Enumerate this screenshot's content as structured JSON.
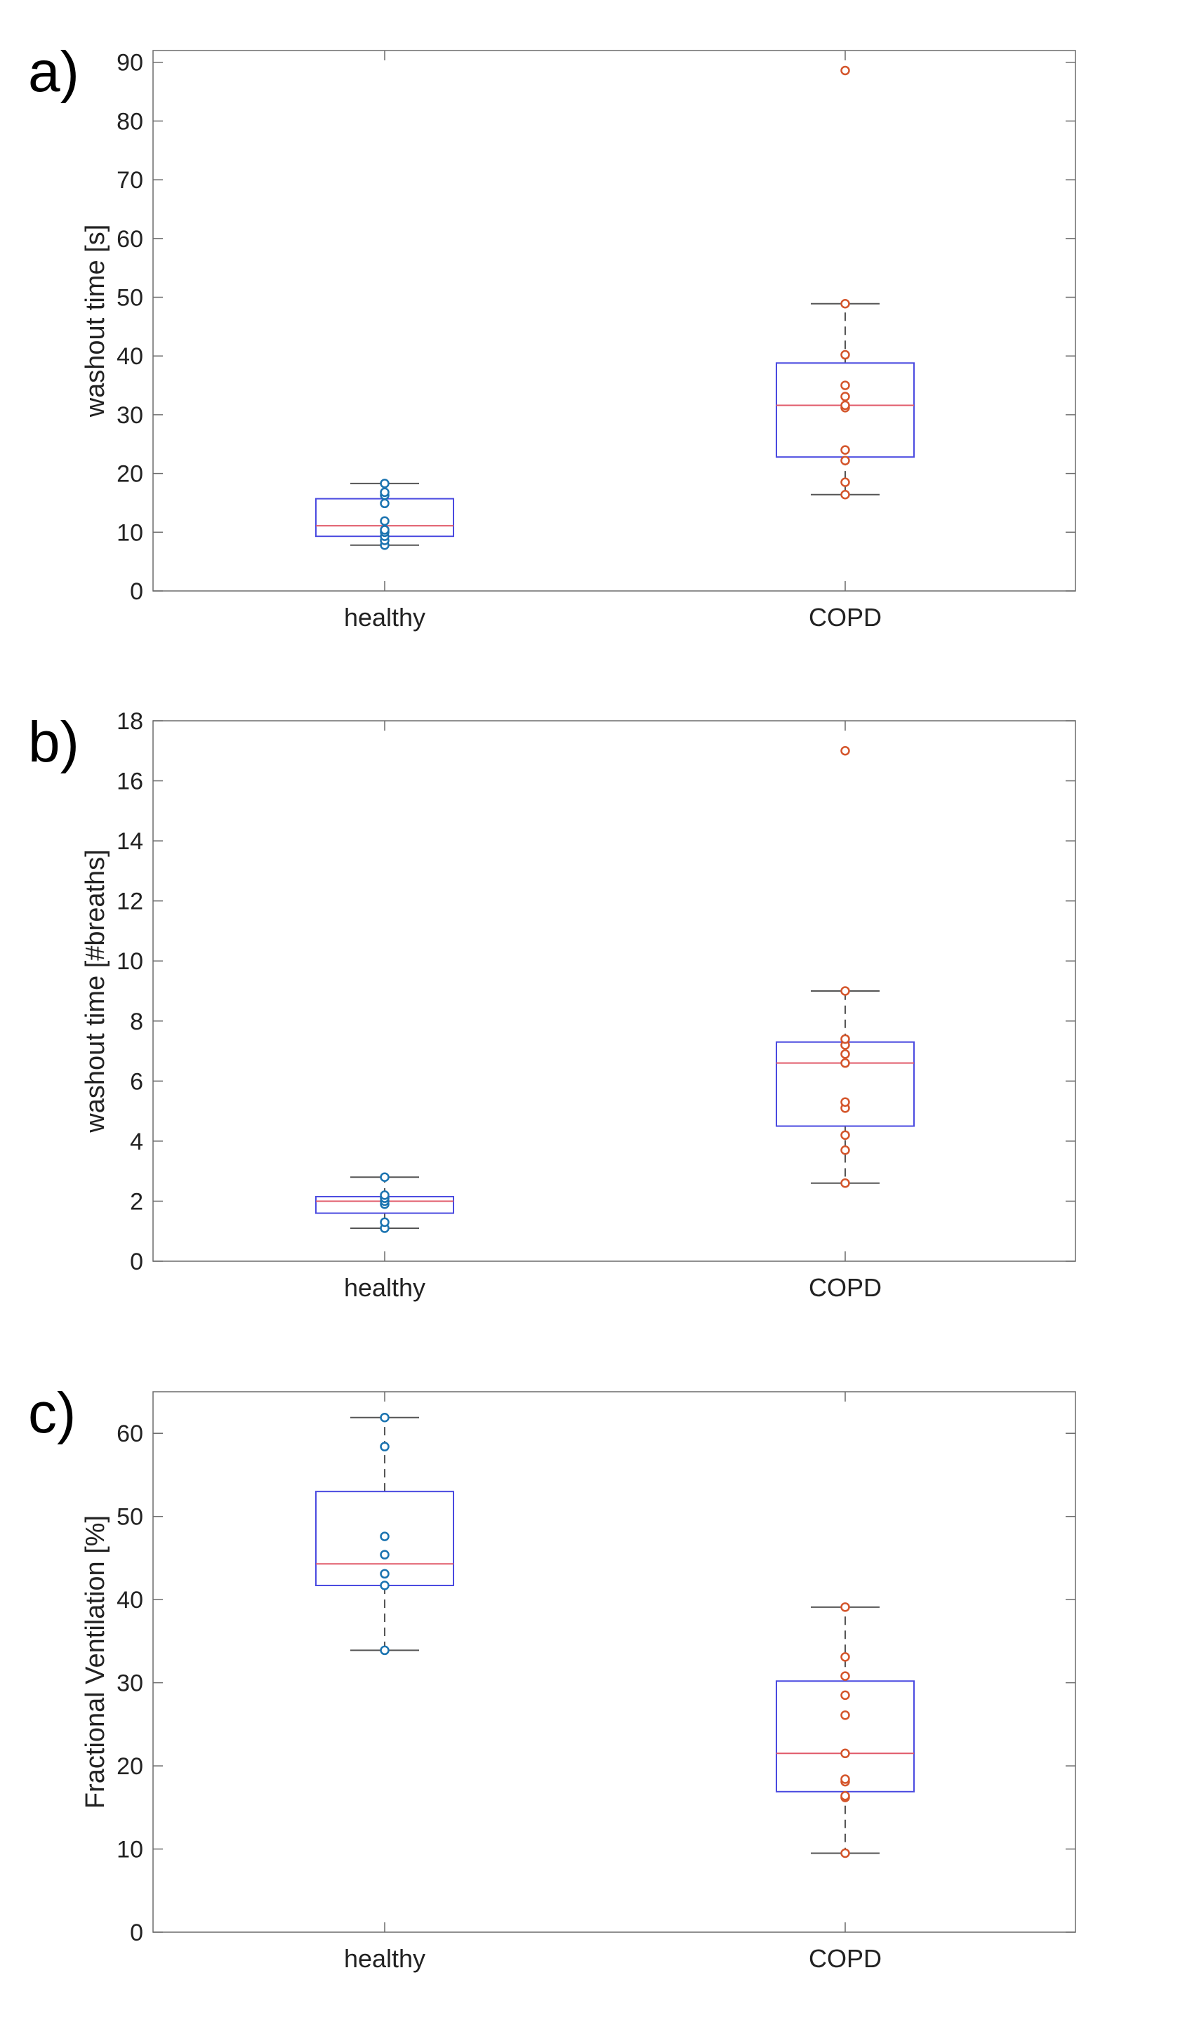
{
  "chart_data": [
    {
      "type": "box",
      "panel_label": "a)",
      "title": "",
      "xlabel": "",
      "ylabel": "washout time [s]",
      "ylim": [
        0,
        92
      ],
      "yticks": [
        0,
        10,
        20,
        30,
        40,
        50,
        60,
        70,
        80,
        90
      ],
      "categories": [
        "healthy",
        "COPD"
      ],
      "groups": [
        {
          "name": "healthy",
          "color": "#1a73b0",
          "whisker_low": 7.8,
          "q1": 9.3,
          "median": 11.1,
          "q3": 15.7,
          "whisker_high": 18.3,
          "points": [
            7.8,
            8.6,
            9.3,
            10.0,
            10.4,
            11.9,
            14.9,
            16.3,
            16.8,
            18.3
          ]
        },
        {
          "name": "COPD",
          "color": "#d4552b",
          "whisker_low": 16.4,
          "q1": 22.8,
          "median": 31.6,
          "q3": 38.8,
          "whisker_high": 48.9,
          "points": [
            16.4,
            18.5,
            22.2,
            24.0,
            31.2,
            31.6,
            33.1,
            35.0,
            40.2,
            48.9,
            88.6
          ]
        }
      ]
    },
    {
      "type": "box",
      "panel_label": "b)",
      "title": "",
      "xlabel": "",
      "ylabel": "washout time [#breaths]",
      "ylim": [
        0,
        18
      ],
      "yticks": [
        0,
        2,
        4,
        6,
        8,
        10,
        12,
        14,
        16,
        18
      ],
      "categories": [
        "healthy",
        "COPD"
      ],
      "groups": [
        {
          "name": "healthy",
          "color": "#1a73b0",
          "whisker_low": 1.1,
          "q1": 1.6,
          "median": 2.0,
          "q3": 2.15,
          "whisker_high": 2.8,
          "points": [
            1.1,
            1.3,
            1.9,
            2.0,
            2.1,
            2.2,
            2.8
          ]
        },
        {
          "name": "COPD",
          "color": "#d4552b",
          "whisker_low": 2.6,
          "q1": 4.5,
          "median": 6.6,
          "q3": 7.3,
          "whisker_high": 9.0,
          "points": [
            2.6,
            3.7,
            4.2,
            5.1,
            5.3,
            6.6,
            6.9,
            7.2,
            7.4,
            9.0,
            17.0
          ]
        }
      ]
    },
    {
      "type": "box",
      "panel_label": "c)",
      "title": "",
      "xlabel": "",
      "ylabel": "Fractional Ventilation [%]",
      "ylim": [
        0,
        65
      ],
      "yticks": [
        0,
        10,
        20,
        30,
        40,
        50,
        60
      ],
      "categories": [
        "healthy",
        "COPD"
      ],
      "groups": [
        {
          "name": "healthy",
          "color": "#1a73b0",
          "whisker_low": 33.9,
          "q1": 41.7,
          "median": 44.3,
          "q3": 53.0,
          "whisker_high": 61.9,
          "points": [
            33.9,
            41.7,
            43.1,
            45.4,
            47.6,
            58.4,
            61.9
          ]
        },
        {
          "name": "COPD",
          "color": "#d4552b",
          "whisker_low": 9.5,
          "q1": 16.9,
          "median": 21.5,
          "q3": 30.2,
          "whisker_high": 39.1,
          "points": [
            9.5,
            16.2,
            16.4,
            18.1,
            18.4,
            21.5,
            26.1,
            28.5,
            30.8,
            33.1,
            39.1
          ]
        }
      ]
    }
  ],
  "colors": {
    "box": "#4a4ae0",
    "median": "#e05a6a",
    "whisker": "#555555",
    "axis": "#6b6b6b",
    "text": "#222222"
  }
}
